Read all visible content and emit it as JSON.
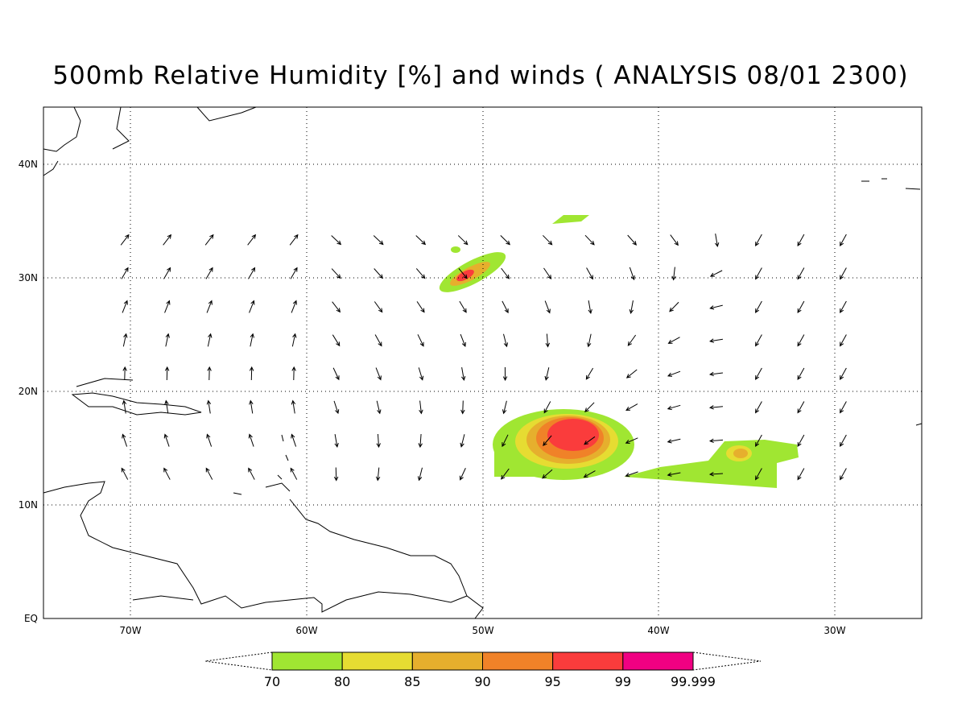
{
  "title": "500mb Relative Humidity [%] and winds ( ANALYSIS 08/01 2300)",
  "map": {
    "lon_labels": [
      "70W",
      "60W",
      "50W",
      "40W",
      "30W"
    ],
    "lat_labels": [
      "EQ",
      "10N",
      "20N",
      "30N",
      "40N"
    ]
  },
  "colorbar": {
    "labels": [
      "70",
      "80",
      "85",
      "90",
      "95",
      "99",
      "99.999"
    ],
    "colors": [
      "#a0e632",
      "#e6dc32",
      "#e6af2d",
      "#f08228",
      "#fa3c3c",
      "#f00082"
    ]
  }
}
